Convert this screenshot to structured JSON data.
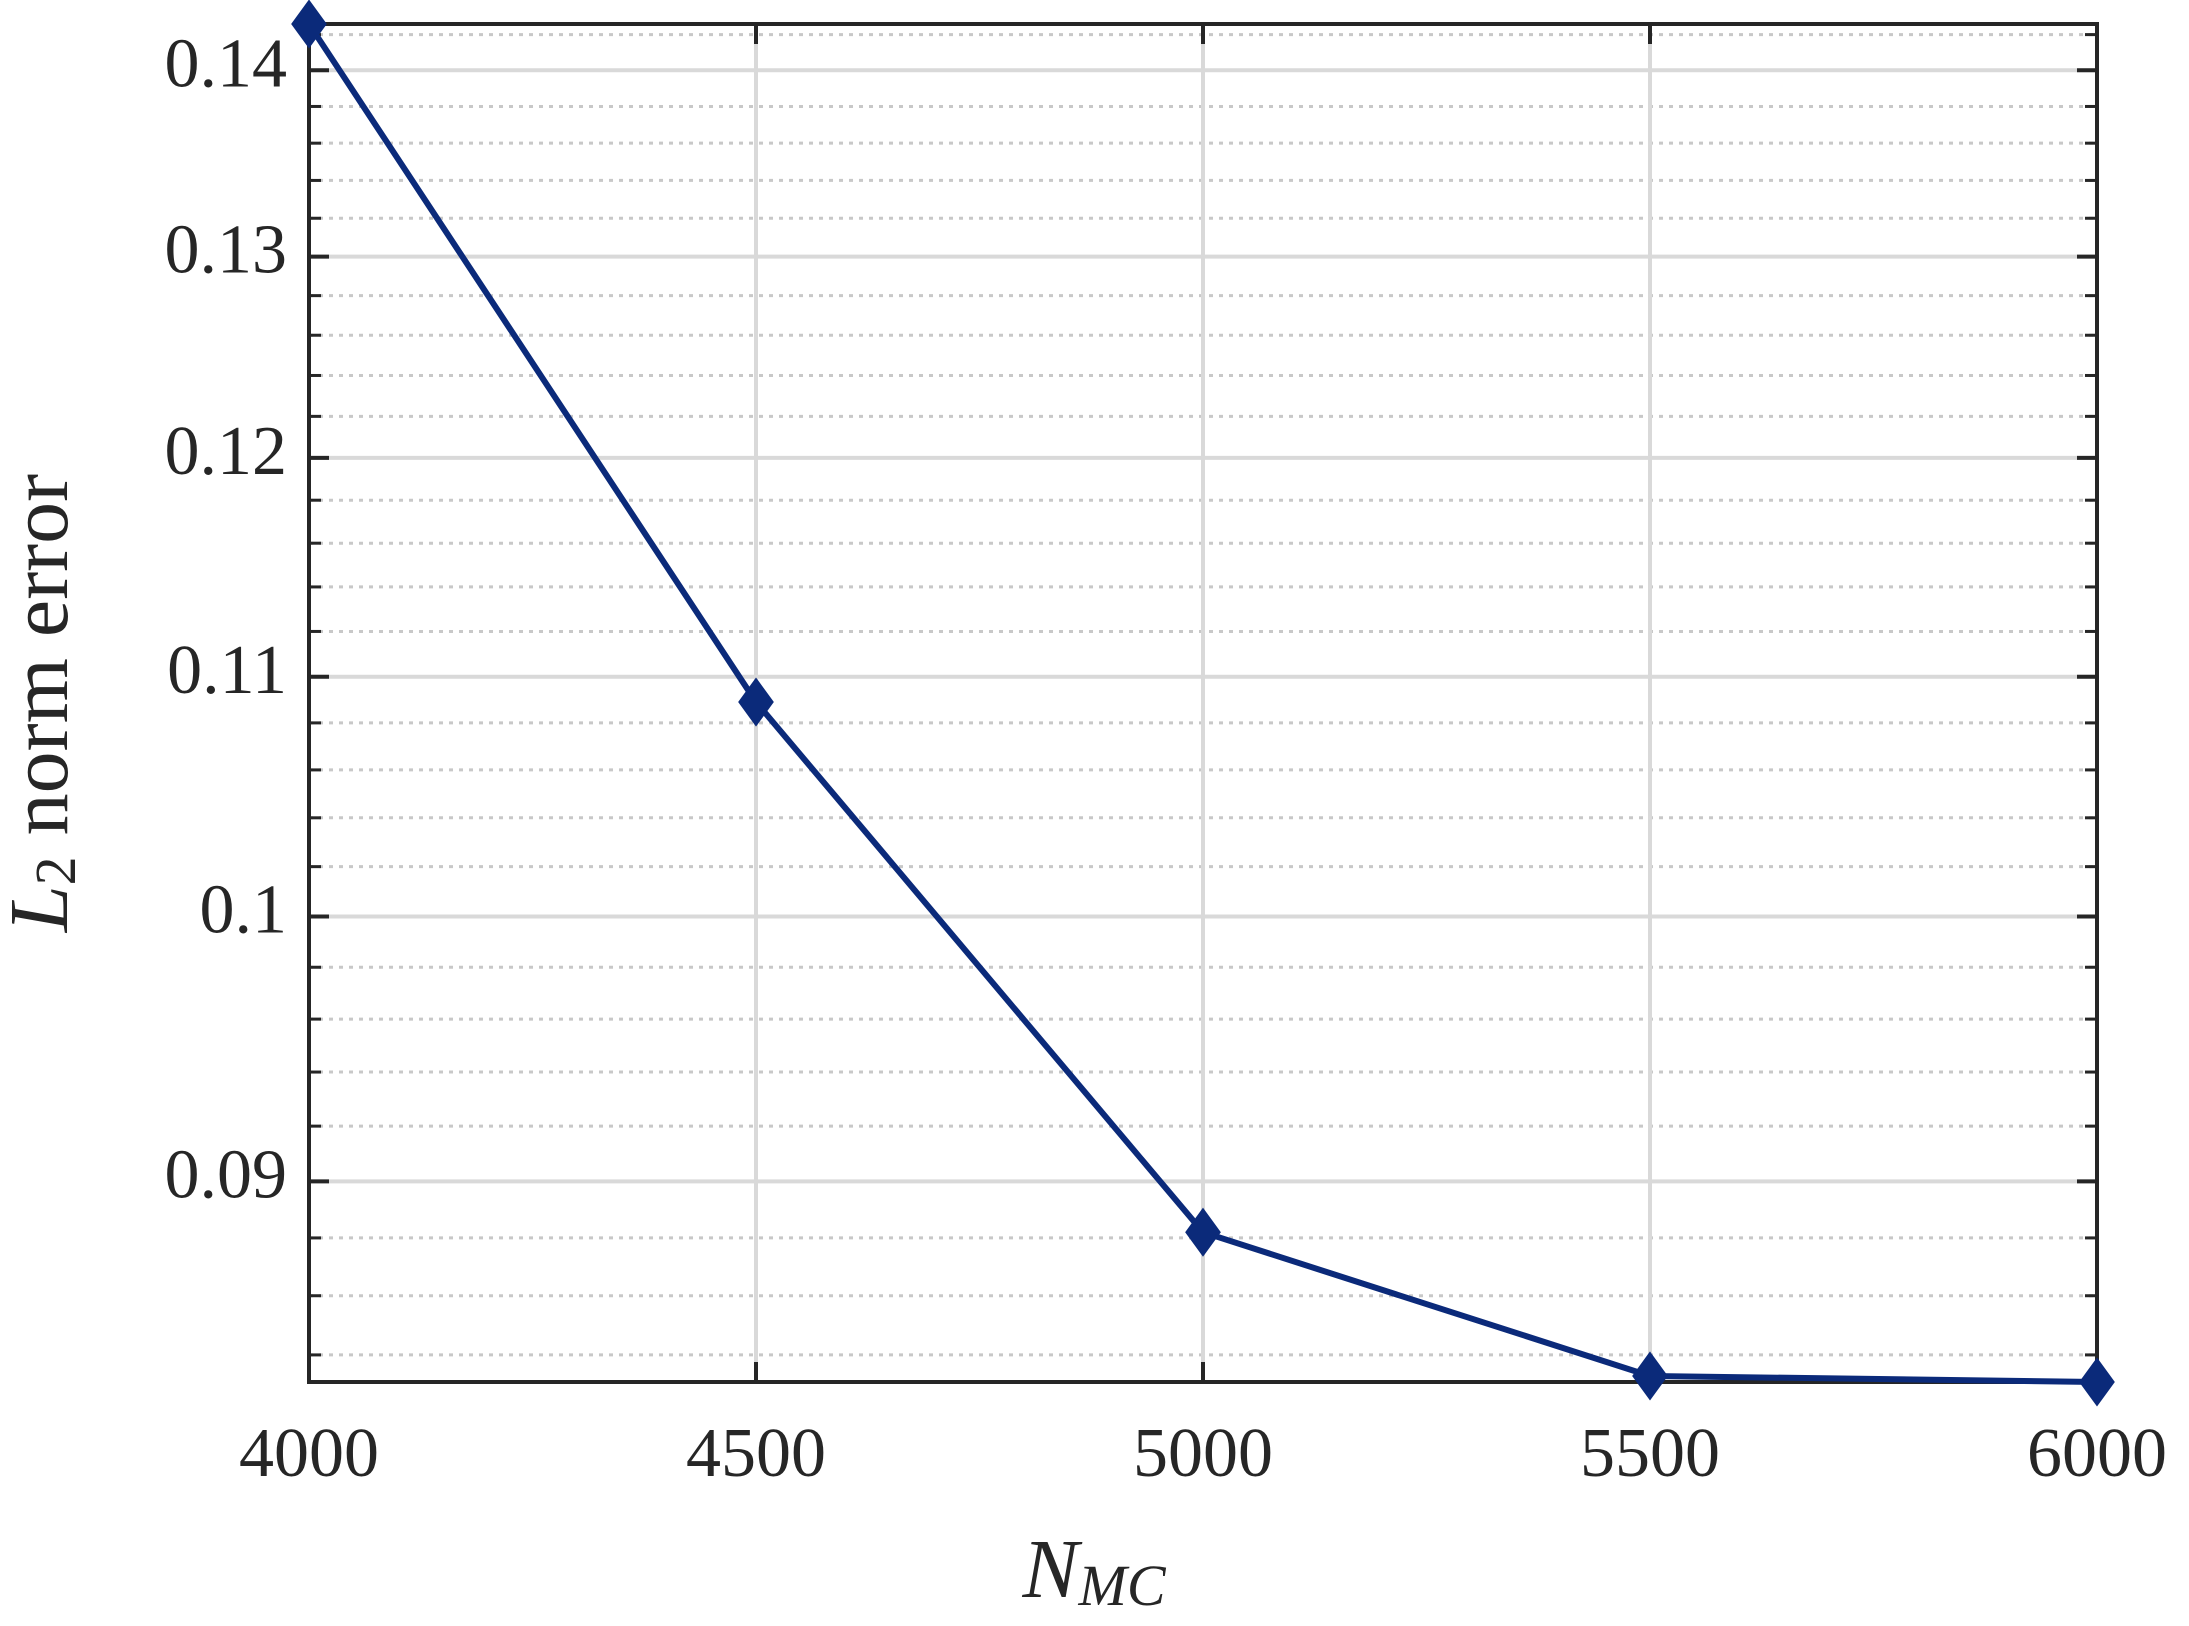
{
  "chart_data": {
    "type": "line",
    "xlabel": {
      "base": "N",
      "sub": "MC"
    },
    "ylabel": {
      "base": "L",
      "sub": "2",
      "rest": " norm error"
    },
    "x": [
      4000,
      4500,
      5000,
      5500,
      6000
    ],
    "series": [
      {
        "color": "#0b2a7a",
        "values": [
          0.1426,
          0.1089,
          0.0882,
          0.0833,
          0.0831
        ]
      }
    ],
    "xlim": [
      4000,
      6000
    ],
    "xticks": [
      4000,
      4500,
      5000,
      5500,
      6000
    ],
    "ylim": [
      0.0831,
      0.1426
    ],
    "yticks": [
      0.09,
      0.1,
      0.11,
      0.12,
      0.13,
      0.14
    ],
    "yminorticks": [
      0.084,
      0.086,
      0.088,
      0.092,
      0.094,
      0.096,
      0.098,
      0.102,
      0.104,
      0.106,
      0.108,
      0.112,
      0.114,
      0.116,
      0.118,
      0.122,
      0.124,
      0.126,
      0.128,
      0.132,
      0.134,
      0.136,
      0.138,
      0.142
    ],
    "ylog": true,
    "grid": true,
    "minor_grid": true,
    "marker": "diamond"
  }
}
